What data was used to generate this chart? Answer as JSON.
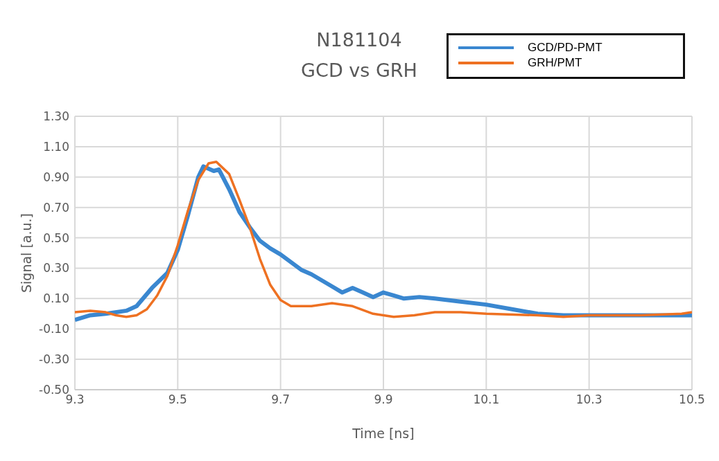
{
  "chart_data": {
    "type": "line",
    "title": "N181104",
    "subtitle": "GCD vs GRH",
    "xlabel": "Time [ns]",
    "ylabel": "Signal [a.u.]",
    "xlim": [
      9.3,
      10.5
    ],
    "xticks": [
      9.3,
      9.5,
      9.7,
      9.9,
      10.1,
      10.3,
      10.5
    ],
    "ylim": [
      -0.5,
      1.3
    ],
    "yticks": [
      {
        "value": -0.5,
        "label": "-0.50"
      },
      {
        "value": -0.3,
        "label": "-0.30"
      },
      {
        "value": -0.1,
        "label": "-0.10"
      },
      {
        "value": 0.1,
        "label": "0.10"
      },
      {
        "value": 0.3,
        "label": "0.30"
      },
      {
        "value": 0.5,
        "label": "0.50"
      },
      {
        "value": 0.7,
        "label": "0.70"
      },
      {
        "value": 0.9,
        "label": "0.90"
      },
      {
        "value": 1.1,
        "label": "1.10"
      },
      {
        "value": 1.3,
        "label": "1.30"
      }
    ],
    "grid": true,
    "legend": "top right",
    "marker": "none",
    "line_style": "solid",
    "series": [
      {
        "name": "GCD/PD-PMT",
        "color": "#3a87d0",
        "x": [
          9.3,
          9.33,
          9.36,
          9.4,
          9.42,
          9.45,
          9.48,
          9.5,
          9.52,
          9.54,
          9.55,
          9.57,
          9.58,
          9.6,
          9.62,
          9.64,
          9.66,
          9.68,
          9.7,
          9.72,
          9.74,
          9.76,
          9.78,
          9.8,
          9.82,
          9.84,
          9.86,
          9.88,
          9.9,
          9.92,
          9.94,
          9.97,
          10.0,
          10.05,
          10.1,
          10.15,
          10.2,
          10.25,
          10.3,
          10.4,
          10.5
        ],
        "values": [
          -0.04,
          -0.01,
          0.0,
          0.02,
          0.05,
          0.17,
          0.27,
          0.42,
          0.65,
          0.9,
          0.97,
          0.94,
          0.95,
          0.82,
          0.67,
          0.57,
          0.48,
          0.43,
          0.39,
          0.34,
          0.29,
          0.26,
          0.22,
          0.18,
          0.14,
          0.17,
          0.14,
          0.11,
          0.14,
          0.12,
          0.1,
          0.11,
          0.1,
          0.08,
          0.06,
          0.03,
          0.0,
          -0.01,
          -0.01,
          -0.01,
          -0.01
        ]
      },
      {
        "name": "GRH/PMT",
        "color": "#ee7122",
        "x": [
          9.3,
          9.33,
          9.36,
          9.38,
          9.4,
          9.42,
          9.44,
          9.46,
          9.48,
          9.5,
          9.52,
          9.54,
          9.56,
          9.575,
          9.6,
          9.62,
          9.64,
          9.66,
          9.68,
          9.7,
          9.72,
          9.76,
          9.8,
          9.84,
          9.88,
          9.92,
          9.96,
          10.0,
          10.05,
          10.1,
          10.2,
          10.25,
          10.3,
          10.4,
          10.48,
          10.5
        ],
        "values": [
          0.01,
          0.02,
          0.01,
          -0.01,
          -0.02,
          -0.01,
          0.03,
          0.12,
          0.25,
          0.45,
          0.68,
          0.88,
          0.99,
          1.0,
          0.92,
          0.75,
          0.57,
          0.36,
          0.19,
          0.09,
          0.05,
          0.05,
          0.07,
          0.05,
          0.0,
          -0.02,
          -0.01,
          0.01,
          0.01,
          0.0,
          -0.01,
          -0.02,
          -0.01,
          -0.01,
          0.0,
          0.01
        ]
      }
    ]
  }
}
